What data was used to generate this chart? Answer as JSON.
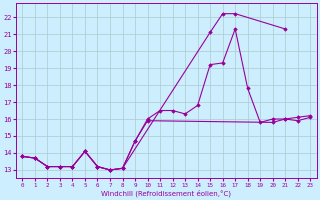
{
  "xlabel": "Windchill (Refroidissement éolien,°C)",
  "bg_color": "#cceeff",
  "grid_color": "#aacccc",
  "line_color": "#990099",
  "xlim": [
    -0.5,
    23.5
  ],
  "ylim": [
    12.5,
    22.8
  ],
  "xticks": [
    0,
    1,
    2,
    3,
    4,
    5,
    6,
    7,
    8,
    9,
    10,
    11,
    12,
    13,
    14,
    15,
    16,
    17,
    18,
    19,
    20,
    21,
    22,
    23
  ],
  "yticks": [
    13,
    14,
    15,
    16,
    17,
    18,
    19,
    20,
    21,
    22
  ],
  "line1": {
    "x": [
      0,
      1,
      2,
      3,
      4,
      5,
      6,
      7,
      8,
      9,
      10,
      11,
      12,
      13,
      14,
      15,
      16,
      17,
      18,
      19,
      20,
      21,
      22,
      23
    ],
    "y": [
      13.8,
      13.7,
      13.2,
      13.2,
      13.2,
      14.1,
      13.2,
      13.0,
      13.1,
      14.7,
      16.0,
      16.5,
      16.5,
      16.3,
      16.8,
      19.2,
      19.3,
      21.3,
      17.8,
      15.8,
      16.0,
      16.0,
      15.9,
      16.1
    ]
  },
  "line2": {
    "x": [
      0,
      1,
      2,
      3,
      4,
      5,
      6,
      7,
      8,
      15,
      16,
      17,
      21
    ],
    "y": [
      13.8,
      13.7,
      13.2,
      13.2,
      13.2,
      14.1,
      13.2,
      13.0,
      13.1,
      21.1,
      22.2,
      22.2,
      21.3
    ]
  },
  "line3": {
    "x": [
      0,
      1,
      2,
      3,
      4,
      5,
      6,
      7,
      8,
      9,
      10,
      20,
      21,
      22,
      23
    ],
    "y": [
      13.8,
      13.7,
      13.2,
      13.2,
      13.2,
      14.1,
      13.2,
      13.0,
      13.1,
      14.7,
      15.9,
      15.8,
      16.0,
      16.1,
      16.2
    ]
  }
}
